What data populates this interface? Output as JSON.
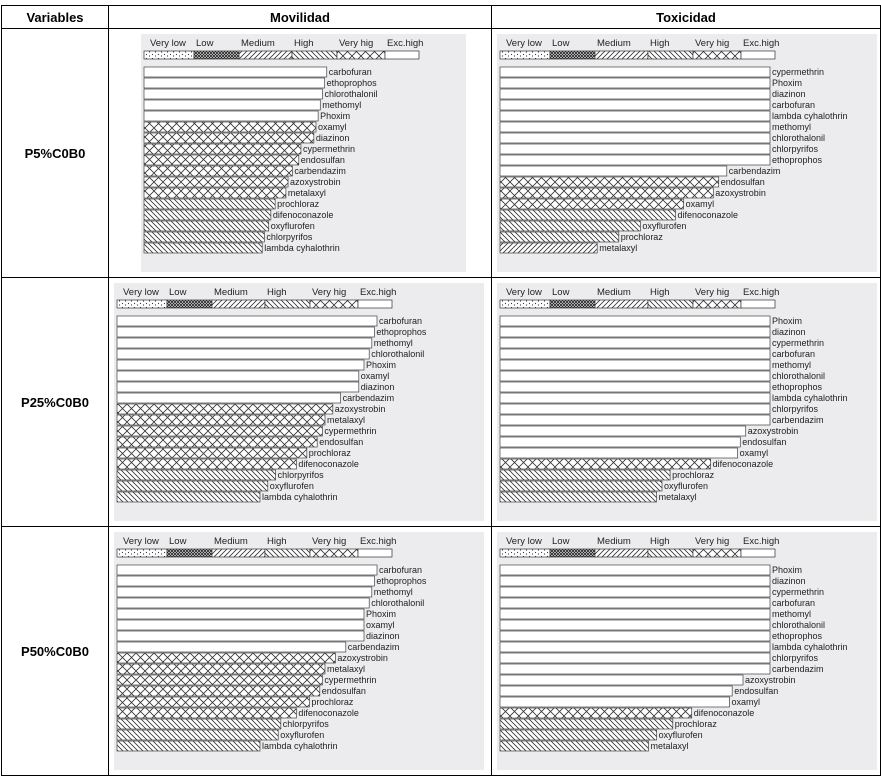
{
  "table": {
    "headers": [
      "Variables",
      "Movilidad",
      "Toxicidad"
    ],
    "rows": [
      "P5%C0B0",
      "P25%C0B0",
      "P50%C0B0"
    ]
  },
  "categories": [
    "Very low",
    "Low",
    "Medium",
    "High",
    "Very high",
    "Exc.high"
  ],
  "category_label_text": [
    "Very low",
    "Low",
    "Medium",
    "High",
    "Very hig",
    "Exc.high"
  ],
  "chart_data": [
    {
      "type": "bar",
      "row": "P5%C0B0",
      "column": "Movilidad",
      "bars": [
        {
          "name": "carbofuran",
          "value": 85,
          "class": "Very low"
        },
        {
          "name": "ethoprophos",
          "value": 84,
          "class": "Very low"
        },
        {
          "name": "chlorothalonil",
          "value": 83,
          "class": "Very low"
        },
        {
          "name": "methomyl",
          "value": 82,
          "class": "Very low"
        },
        {
          "name": "Phoxim",
          "value": 81,
          "class": "Very low"
        },
        {
          "name": "oxamyl",
          "value": 80,
          "class": "Very high"
        },
        {
          "name": "diazinon",
          "value": 79,
          "class": "Very high"
        },
        {
          "name": "cypermethrin",
          "value": 73,
          "class": "Very high"
        },
        {
          "name": "endosulfan",
          "value": 72,
          "class": "Very high"
        },
        {
          "name": "carbendazim",
          "value": 69,
          "class": "Exc.high"
        },
        {
          "name": "azoxystrobin",
          "value": 67,
          "class": "Very high"
        },
        {
          "name": "metalaxyl",
          "value": 66,
          "class": "Very high"
        },
        {
          "name": "prochloraz",
          "value": 61,
          "class": "High"
        },
        {
          "name": "difenoconazole",
          "value": 59,
          "class": "High"
        },
        {
          "name": "oxyflurofen",
          "value": 58,
          "class": "High"
        },
        {
          "name": "chlorpyrifos",
          "value": 56,
          "class": "High"
        },
        {
          "name": "lambda cyhalothrin",
          "value": 55,
          "class": "High"
        }
      ]
    },
    {
      "type": "bar",
      "row": "P5%C0B0",
      "column": "Toxicidad",
      "bars": [
        {
          "name": "cypermethrin",
          "value": 100,
          "class": "Very low"
        },
        {
          "name": "Phoxim",
          "value": 100,
          "class": "Very low"
        },
        {
          "name": "diazinon",
          "value": 100,
          "class": "Very low"
        },
        {
          "name": "carbofuran",
          "value": 100,
          "class": "Very low"
        },
        {
          "name": "lambda cyhalothrin",
          "value": 100,
          "class": "Very low"
        },
        {
          "name": "methomyl",
          "value": 100,
          "class": "Very low"
        },
        {
          "name": "chlorothalonil",
          "value": 100,
          "class": "Very low"
        },
        {
          "name": "chlorpyrifos",
          "value": 100,
          "class": "Very low"
        },
        {
          "name": "ethoprophos",
          "value": 100,
          "class": "Very low"
        },
        {
          "name": "carbendazim",
          "value": 84,
          "class": "Very low"
        },
        {
          "name": "endosulfan",
          "value": 81,
          "class": "Very high"
        },
        {
          "name": "azoxystrobin",
          "value": 79,
          "class": "Very high"
        },
        {
          "name": "oxamyl",
          "value": 68,
          "class": "Very high"
        },
        {
          "name": "difenoconazole",
          "value": 65,
          "class": "High"
        },
        {
          "name": "oxyflurofen",
          "value": 52,
          "class": "High"
        },
        {
          "name": "prochloraz",
          "value": 44,
          "class": "High"
        },
        {
          "name": "metalaxyl",
          "value": 36,
          "class": "Medium"
        }
      ]
    },
    {
      "type": "bar",
      "row": "P25%C0B0",
      "column": "Movilidad",
      "bars": [
        {
          "name": "carbofuran",
          "value": 100,
          "class": "Very low"
        },
        {
          "name": "ethoprophos",
          "value": 99,
          "class": "Very low"
        },
        {
          "name": "methomyl",
          "value": 98,
          "class": "Very low"
        },
        {
          "name": "chlorothalonil",
          "value": 97,
          "class": "Very low"
        },
        {
          "name": "Phoxim",
          "value": 95,
          "class": "Very low"
        },
        {
          "name": "oxamyl",
          "value": 93,
          "class": "Very low"
        },
        {
          "name": "diazinon",
          "value": 93,
          "class": "Very low"
        },
        {
          "name": "carbendazim",
          "value": 86,
          "class": "Very low"
        },
        {
          "name": "azoxystrobin",
          "value": 83,
          "class": "Very high"
        },
        {
          "name": "metalaxyl",
          "value": 80,
          "class": "Very high"
        },
        {
          "name": "cypermethrin",
          "value": 79,
          "class": "Very high"
        },
        {
          "name": "endosulfan",
          "value": 77,
          "class": "Very high"
        },
        {
          "name": "prochloraz",
          "value": 73,
          "class": "Very high"
        },
        {
          "name": "difenoconazole",
          "value": 69,
          "class": "Exc.high"
        },
        {
          "name": "chlorpyrifos",
          "value": 61,
          "class": "High"
        },
        {
          "name": "oxyflurofen",
          "value": 58,
          "class": "High"
        },
        {
          "name": "lambda cyhalothrin",
          "value": 55,
          "class": "High"
        }
      ]
    },
    {
      "type": "bar",
      "row": "P25%C0B0",
      "column": "Toxicidad",
      "bars": [
        {
          "name": "Phoxim",
          "value": 100,
          "class": "Very low"
        },
        {
          "name": "diazinon",
          "value": 100,
          "class": "Very low"
        },
        {
          "name": "cypermethrin",
          "value": 100,
          "class": "Very low"
        },
        {
          "name": "carbofuran",
          "value": 100,
          "class": "Very low"
        },
        {
          "name": "methomyl",
          "value": 100,
          "class": "Very low"
        },
        {
          "name": "chlorothalonil",
          "value": 100,
          "class": "Very low"
        },
        {
          "name": "ethoprophos",
          "value": 100,
          "class": "Very low"
        },
        {
          "name": "lambda cyhalothrin",
          "value": 100,
          "class": "Very low"
        },
        {
          "name": "chlorpyrifos",
          "value": 100,
          "class": "Very low"
        },
        {
          "name": "carbendazim",
          "value": 100,
          "class": "Very low"
        },
        {
          "name": "azoxystrobin",
          "value": 91,
          "class": "Very low"
        },
        {
          "name": "endosulfan",
          "value": 89,
          "class": "Very low"
        },
        {
          "name": "oxamyl",
          "value": 88,
          "class": "Very low"
        },
        {
          "name": "difenoconazole",
          "value": 78,
          "class": "Very high"
        },
        {
          "name": "prochloraz",
          "value": 63,
          "class": "High"
        },
        {
          "name": "oxyflurofen",
          "value": 60,
          "class": "High"
        },
        {
          "name": "metalaxyl",
          "value": 58,
          "class": "High"
        }
      ]
    },
    {
      "type": "bar",
      "row": "P50%C0B0",
      "column": "Movilidad",
      "bars": [
        {
          "name": "carbofuran",
          "value": 100,
          "class": "Very low"
        },
        {
          "name": "ethoprophos",
          "value": 99,
          "class": "Very low"
        },
        {
          "name": "methomyl",
          "value": 98,
          "class": "Very low"
        },
        {
          "name": "chlorothalonil",
          "value": 97,
          "class": "Very low"
        },
        {
          "name": "Phoxim",
          "value": 95,
          "class": "Very low"
        },
        {
          "name": "oxamyl",
          "value": 95,
          "class": "Very low"
        },
        {
          "name": "diazinon",
          "value": 95,
          "class": "Very low"
        },
        {
          "name": "carbendazim",
          "value": 88,
          "class": "Very low"
        },
        {
          "name": "azoxystrobin",
          "value": 84,
          "class": "Very high"
        },
        {
          "name": "metalaxyl",
          "value": 80,
          "class": "Very high"
        },
        {
          "name": "cypermethrin",
          "value": 79,
          "class": "Very high"
        },
        {
          "name": "endosulfan",
          "value": 78,
          "class": "Very high"
        },
        {
          "name": "prochloraz",
          "value": 74,
          "class": "Very high"
        },
        {
          "name": "difenoconazole",
          "value": 69,
          "class": "Very high"
        },
        {
          "name": "chlorpyrifos",
          "value": 63,
          "class": "High"
        },
        {
          "name": "oxyflurofen",
          "value": 62,
          "class": "High"
        },
        {
          "name": "lambda cyhalothrin",
          "value": 55,
          "class": "High"
        }
      ]
    },
    {
      "type": "bar",
      "row": "P50%C0B0",
      "column": "Toxicidad",
      "bars": [
        {
          "name": "Phoxim",
          "value": 100,
          "class": "Very low"
        },
        {
          "name": "diazinon",
          "value": 100,
          "class": "Very low"
        },
        {
          "name": "cypermethrin",
          "value": 100,
          "class": "Very low"
        },
        {
          "name": "carbofuran",
          "value": 100,
          "class": "Very low"
        },
        {
          "name": "methomyl",
          "value": 100,
          "class": "Very low"
        },
        {
          "name": "chlorothalonil",
          "value": 100,
          "class": "Very low"
        },
        {
          "name": "ethoprophos",
          "value": 100,
          "class": "Very low"
        },
        {
          "name": "lambda cyhalothrin",
          "value": 100,
          "class": "Very low"
        },
        {
          "name": "chlorpyrifos",
          "value": 100,
          "class": "Very low"
        },
        {
          "name": "carbendazim",
          "value": 100,
          "class": "Very low"
        },
        {
          "name": "azoxystrobin",
          "value": 90,
          "class": "Very low"
        },
        {
          "name": "endosulfan",
          "value": 86,
          "class": "Very low"
        },
        {
          "name": "oxamyl",
          "value": 85,
          "class": "Very low"
        },
        {
          "name": "difenoconazole",
          "value": 71,
          "class": "Very high"
        },
        {
          "name": "prochloraz",
          "value": 64,
          "class": "High"
        },
        {
          "name": "oxyflurofen",
          "value": 58,
          "class": "High"
        },
        {
          "name": "metalaxyl",
          "value": 55,
          "class": "High"
        }
      ]
    }
  ]
}
